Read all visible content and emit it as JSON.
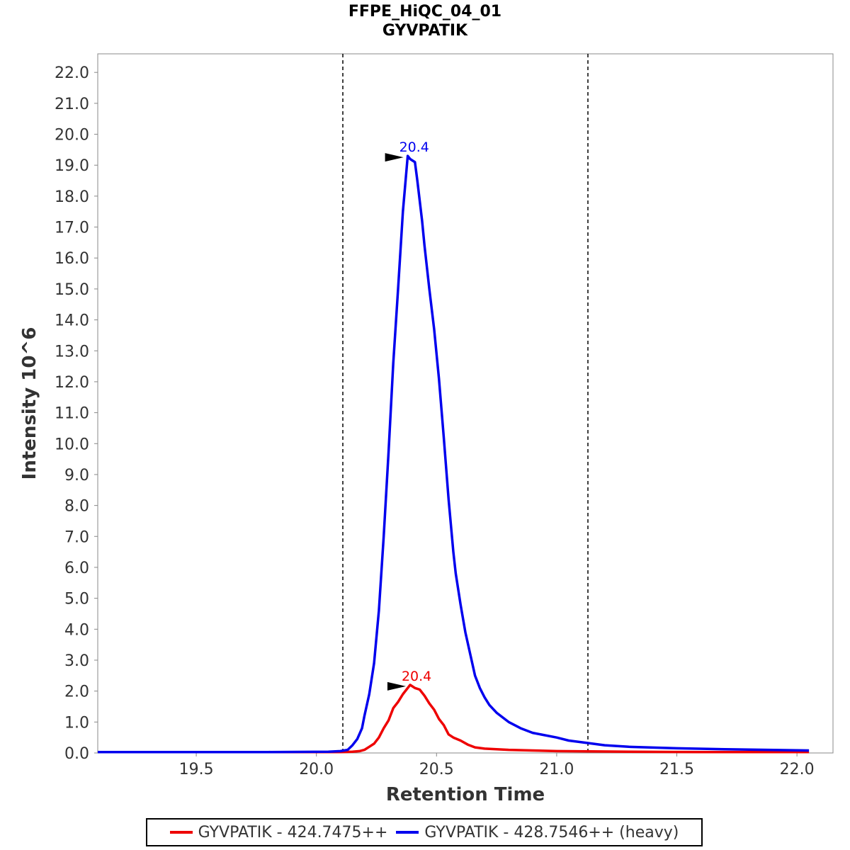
{
  "chart_data": {
    "type": "line",
    "title": "FFPE_HiQC_04_01",
    "subtitle": "GYVPATIK",
    "xlabel": "Retention Time",
    "ylabel": "Intensity 10^6",
    "xlim": [
      19.09,
      22.15
    ],
    "ylim": [
      0,
      22.6
    ],
    "x_ticks": [
      "19.5",
      "20.0",
      "20.5",
      "21.0",
      "21.5",
      "22.0"
    ],
    "y_ticks": [
      "0.0",
      "1.0",
      "2.0",
      "3.0",
      "4.0",
      "5.0",
      "6.0",
      "7.0",
      "8.0",
      "9.0",
      "10.0",
      "11.0",
      "12.0",
      "13.0",
      "14.0",
      "15.0",
      "16.0",
      "17.0",
      "18.0",
      "19.0",
      "20.0",
      "21.0",
      "22.0"
    ],
    "integration_boundaries": [
      20.11,
      21.13
    ],
    "series": [
      {
        "name": "GYVPATIK - 424.7475++",
        "color": "#ee0000",
        "peak_label": "20.4",
        "peak": {
          "x": 20.39,
          "y": 2.2
        },
        "x": [
          19.09,
          19.8,
          20.05,
          20.1,
          20.15,
          20.18,
          20.2,
          20.22,
          20.24,
          20.26,
          20.28,
          20.3,
          20.32,
          20.34,
          20.36,
          20.38,
          20.39,
          20.41,
          20.43,
          20.45,
          20.47,
          20.49,
          20.51,
          20.53,
          20.55,
          20.57,
          20.6,
          20.63,
          20.66,
          20.7,
          20.8,
          20.9,
          21.0,
          21.13,
          21.3,
          21.6,
          22.05
        ],
        "y": [
          0.03,
          0.03,
          0.03,
          0.03,
          0.04,
          0.06,
          0.1,
          0.2,
          0.3,
          0.5,
          0.8,
          1.05,
          1.45,
          1.65,
          1.9,
          2.1,
          2.2,
          2.1,
          2.05,
          1.85,
          1.6,
          1.4,
          1.1,
          0.9,
          0.6,
          0.5,
          0.4,
          0.27,
          0.18,
          0.14,
          0.1,
          0.08,
          0.06,
          0.05,
          0.04,
          0.03,
          0.03
        ]
      },
      {
        "name": "GYVPATIK - 428.7546++ (heavy)",
        "color": "#0000ee",
        "peak_label": "20.4",
        "peak": {
          "x": 20.38,
          "y": 19.3
        },
        "x": [
          19.09,
          19.8,
          20.05,
          20.1,
          20.13,
          20.15,
          20.17,
          20.19,
          20.2,
          20.22,
          20.24,
          20.26,
          20.28,
          20.3,
          20.32,
          20.34,
          20.36,
          20.38,
          20.39,
          20.41,
          20.42,
          20.44,
          20.45,
          20.47,
          20.49,
          20.51,
          20.53,
          20.55,
          20.57,
          20.58,
          20.6,
          20.62,
          20.64,
          20.66,
          20.68,
          20.7,
          20.72,
          20.75,
          20.8,
          20.85,
          20.9,
          21.0,
          21.05,
          21.13,
          21.2,
          21.3,
          21.5,
          21.7,
          22.05
        ],
        "y": [
          0.03,
          0.03,
          0.04,
          0.06,
          0.1,
          0.25,
          0.45,
          0.8,
          1.2,
          1.9,
          2.9,
          4.6,
          7.0,
          9.7,
          12.6,
          15.0,
          17.5,
          19.3,
          19.2,
          19.1,
          18.5,
          17.2,
          16.4,
          15.0,
          13.7,
          12.1,
          10.2,
          8.2,
          6.5,
          5.8,
          4.8,
          3.9,
          3.2,
          2.5,
          2.1,
          1.8,
          1.55,
          1.3,
          1.0,
          0.8,
          0.65,
          0.5,
          0.4,
          0.32,
          0.25,
          0.2,
          0.15,
          0.12,
          0.08
        ]
      }
    ]
  }
}
